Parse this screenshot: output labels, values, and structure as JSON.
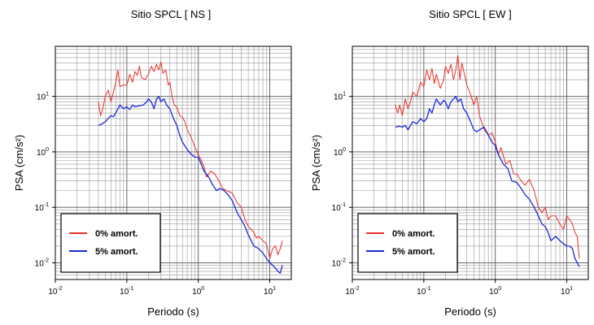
{
  "chart_data": [
    {
      "type": "line",
      "title": "Sitio SPCL [ NS ]",
      "xlabel": "Periodo (s)",
      "ylabel": "PSA (cm/s²)",
      "xscale": "log",
      "yscale": "log",
      "xlim": [
        0.01,
        20
      ],
      "ylim": [
        0.005,
        80
      ],
      "xticks": [
        {
          "base": "10",
          "exp": "-2"
        },
        {
          "base": "10",
          "exp": "-1"
        },
        {
          "base": "10",
          "exp": "0"
        },
        {
          "base": "10",
          "exp": "1"
        }
      ],
      "yticks": [
        {
          "base": "10",
          "exp": "-2"
        },
        {
          "base": "10",
          "exp": "-1"
        },
        {
          "base": "10",
          "exp": "0"
        },
        {
          "base": "10",
          "exp": "1"
        }
      ],
      "grid": true,
      "legend_position": "bottom-left",
      "series": [
        {
          "name": "0% amort.",
          "color": "#e8302a",
          "x": [
            0.04,
            0.043,
            0.046,
            0.05,
            0.055,
            0.06,
            0.065,
            0.07,
            0.075,
            0.08,
            0.09,
            0.1,
            0.11,
            0.12,
            0.13,
            0.14,
            0.15,
            0.16,
            0.18,
            0.2,
            0.22,
            0.24,
            0.26,
            0.28,
            0.3,
            0.32,
            0.35,
            0.38,
            0.4,
            0.43,
            0.46,
            0.5,
            0.55,
            0.6,
            0.65,
            0.7,
            0.8,
            0.9,
            1,
            1.1,
            1.2,
            1.3,
            1.5,
            1.7,
            2,
            2.2,
            2.5,
            3,
            3.5,
            4,
            4.5,
            5,
            5.5,
            6,
            6.5,
            7,
            8,
            9,
            10,
            11,
            12,
            13,
            14,
            15
          ],
          "values": [
            8,
            4.5,
            6,
            10,
            13,
            8,
            12,
            18,
            30,
            15,
            16,
            16,
            25,
            18,
            28,
            24,
            35,
            22,
            20,
            25,
            35,
            28,
            38,
            30,
            42,
            26,
            30,
            16,
            18,
            10,
            7,
            6.5,
            4.5,
            4.2,
            3.5,
            2.5,
            1.8,
            1.2,
            0.9,
            0.7,
            0.55,
            0.35,
            0.45,
            0.4,
            0.28,
            0.22,
            0.2,
            0.18,
            0.12,
            0.1,
            0.06,
            0.045,
            0.04,
            0.035,
            0.028,
            0.03,
            0.025,
            0.022,
            0.012,
            0.018,
            0.02,
            0.014,
            0.018,
            0.025
          ]
        },
        {
          "name": "5% amort.",
          "color": "#1a28d8",
          "x": [
            0.04,
            0.045,
            0.05,
            0.055,
            0.06,
            0.065,
            0.07,
            0.08,
            0.09,
            0.1,
            0.11,
            0.12,
            0.13,
            0.15,
            0.17,
            0.19,
            0.2,
            0.22,
            0.24,
            0.26,
            0.28,
            0.3,
            0.33,
            0.36,
            0.4,
            0.45,
            0.5,
            0.55,
            0.6,
            0.7,
            0.8,
            0.9,
            1,
            1.1,
            1.2,
            1.4,
            1.6,
            1.8,
            2,
            2.3,
            2.6,
            3,
            3.5,
            4,
            4.5,
            5,
            5.5,
            6,
            7,
            8,
            9,
            10,
            11,
            12,
            13,
            14,
            15
          ],
          "values": [
            3,
            3.2,
            3.5,
            4,
            4.5,
            4.3,
            5,
            7,
            6,
            6.5,
            5.8,
            7,
            6.5,
            6.8,
            7,
            8,
            9,
            8,
            6,
            9,
            10,
            8,
            9,
            7,
            6,
            4,
            3,
            2,
            1.5,
            1.1,
            0.9,
            0.8,
            0.8,
            0.6,
            0.45,
            0.35,
            0.25,
            0.2,
            0.22,
            0.2,
            0.17,
            0.13,
            0.08,
            0.06,
            0.045,
            0.032,
            0.025,
            0.02,
            0.018,
            0.015,
            0.012,
            0.01,
            0.009,
            0.008,
            0.007,
            0.0065,
            0.009
          ]
        }
      ]
    },
    {
      "type": "line",
      "title": "Sitio SPCL [ EW ]",
      "xlabel": "Periodo (s)",
      "ylabel": "PSA (cm/s²)",
      "xscale": "log",
      "yscale": "log",
      "xlim": [
        0.01,
        20
      ],
      "ylim": [
        0.005,
        80
      ],
      "xticks": [
        {
          "base": "10",
          "exp": "-2"
        },
        {
          "base": "10",
          "exp": "-1"
        },
        {
          "base": "10",
          "exp": "0"
        },
        {
          "base": "10",
          "exp": "1"
        }
      ],
      "yticks": [
        {
          "base": "10",
          "exp": "-2"
        },
        {
          "base": "10",
          "exp": "-1"
        },
        {
          "base": "10",
          "exp": "0"
        },
        {
          "base": "10",
          "exp": "1"
        }
      ],
      "grid": true,
      "legend_position": "bottom-left",
      "series": [
        {
          "name": "0% amort.",
          "color": "#e8302a",
          "x": [
            0.04,
            0.043,
            0.046,
            0.05,
            0.055,
            0.06,
            0.065,
            0.07,
            0.08,
            0.09,
            0.1,
            0.11,
            0.12,
            0.13,
            0.14,
            0.15,
            0.17,
            0.19,
            0.2,
            0.22,
            0.24,
            0.26,
            0.28,
            0.3,
            0.32,
            0.34,
            0.37,
            0.4,
            0.45,
            0.5,
            0.55,
            0.6,
            0.7,
            0.8,
            0.9,
            1,
            1.1,
            1.2,
            1.4,
            1.6,
            1.8,
            2,
            2.3,
            2.6,
            3,
            3.5,
            4,
            4.5,
            5,
            5.5,
            6,
            7,
            8,
            9,
            10,
            11,
            12,
            13,
            14,
            15
          ],
          "values": [
            7,
            5,
            7,
            4.5,
            9,
            6,
            8,
            12,
            10,
            18,
            15,
            30,
            20,
            32,
            17,
            25,
            14,
            20,
            35,
            26,
            38,
            20,
            30,
            55,
            20,
            40,
            25,
            16,
            11,
            7,
            10,
            4.5,
            2.5,
            2,
            2.2,
            1.5,
            0.9,
            1.2,
            0.6,
            0.7,
            0.4,
            0.4,
            0.3,
            0.25,
            0.32,
            0.2,
            0.1,
            0.08,
            0.1,
            0.06,
            0.07,
            0.07,
            0.05,
            0.04,
            0.07,
            0.06,
            0.05,
            0.035,
            0.03,
            0.012
          ]
        },
        {
          "name": "5% amort.",
          "color": "#1a28d8",
          "x": [
            0.04,
            0.045,
            0.05,
            0.055,
            0.06,
            0.07,
            0.08,
            0.09,
            0.1,
            0.11,
            0.12,
            0.13,
            0.14,
            0.15,
            0.17,
            0.19,
            0.2,
            0.22,
            0.24,
            0.26,
            0.28,
            0.3,
            0.33,
            0.36,
            0.4,
            0.45,
            0.5,
            0.55,
            0.6,
            0.7,
            0.8,
            0.9,
            1,
            1.1,
            1.3,
            1.5,
            1.7,
            2,
            2.3,
            2.6,
            3,
            3.5,
            4,
            4.5,
            5,
            5.5,
            6,
            7,
            8,
            9,
            10,
            11,
            12,
            13,
            14,
            15
          ],
          "values": [
            2.8,
            2.9,
            2.8,
            3,
            2.5,
            3.5,
            3.2,
            4,
            3.5,
            4,
            6,
            5,
            7,
            9,
            7,
            8.5,
            8,
            6,
            8,
            9,
            10,
            8,
            9,
            6,
            5,
            3.5,
            2.5,
            2.3,
            2.5,
            2.8,
            2,
            1.5,
            1.3,
            0.9,
            0.6,
            0.5,
            0.3,
            0.28,
            0.22,
            0.17,
            0.14,
            0.1,
            0.07,
            0.05,
            0.045,
            0.035,
            0.025,
            0.03,
            0.025,
            0.022,
            0.02,
            0.02,
            0.018,
            0.012,
            0.01,
            0.0085
          ]
        }
      ]
    }
  ]
}
